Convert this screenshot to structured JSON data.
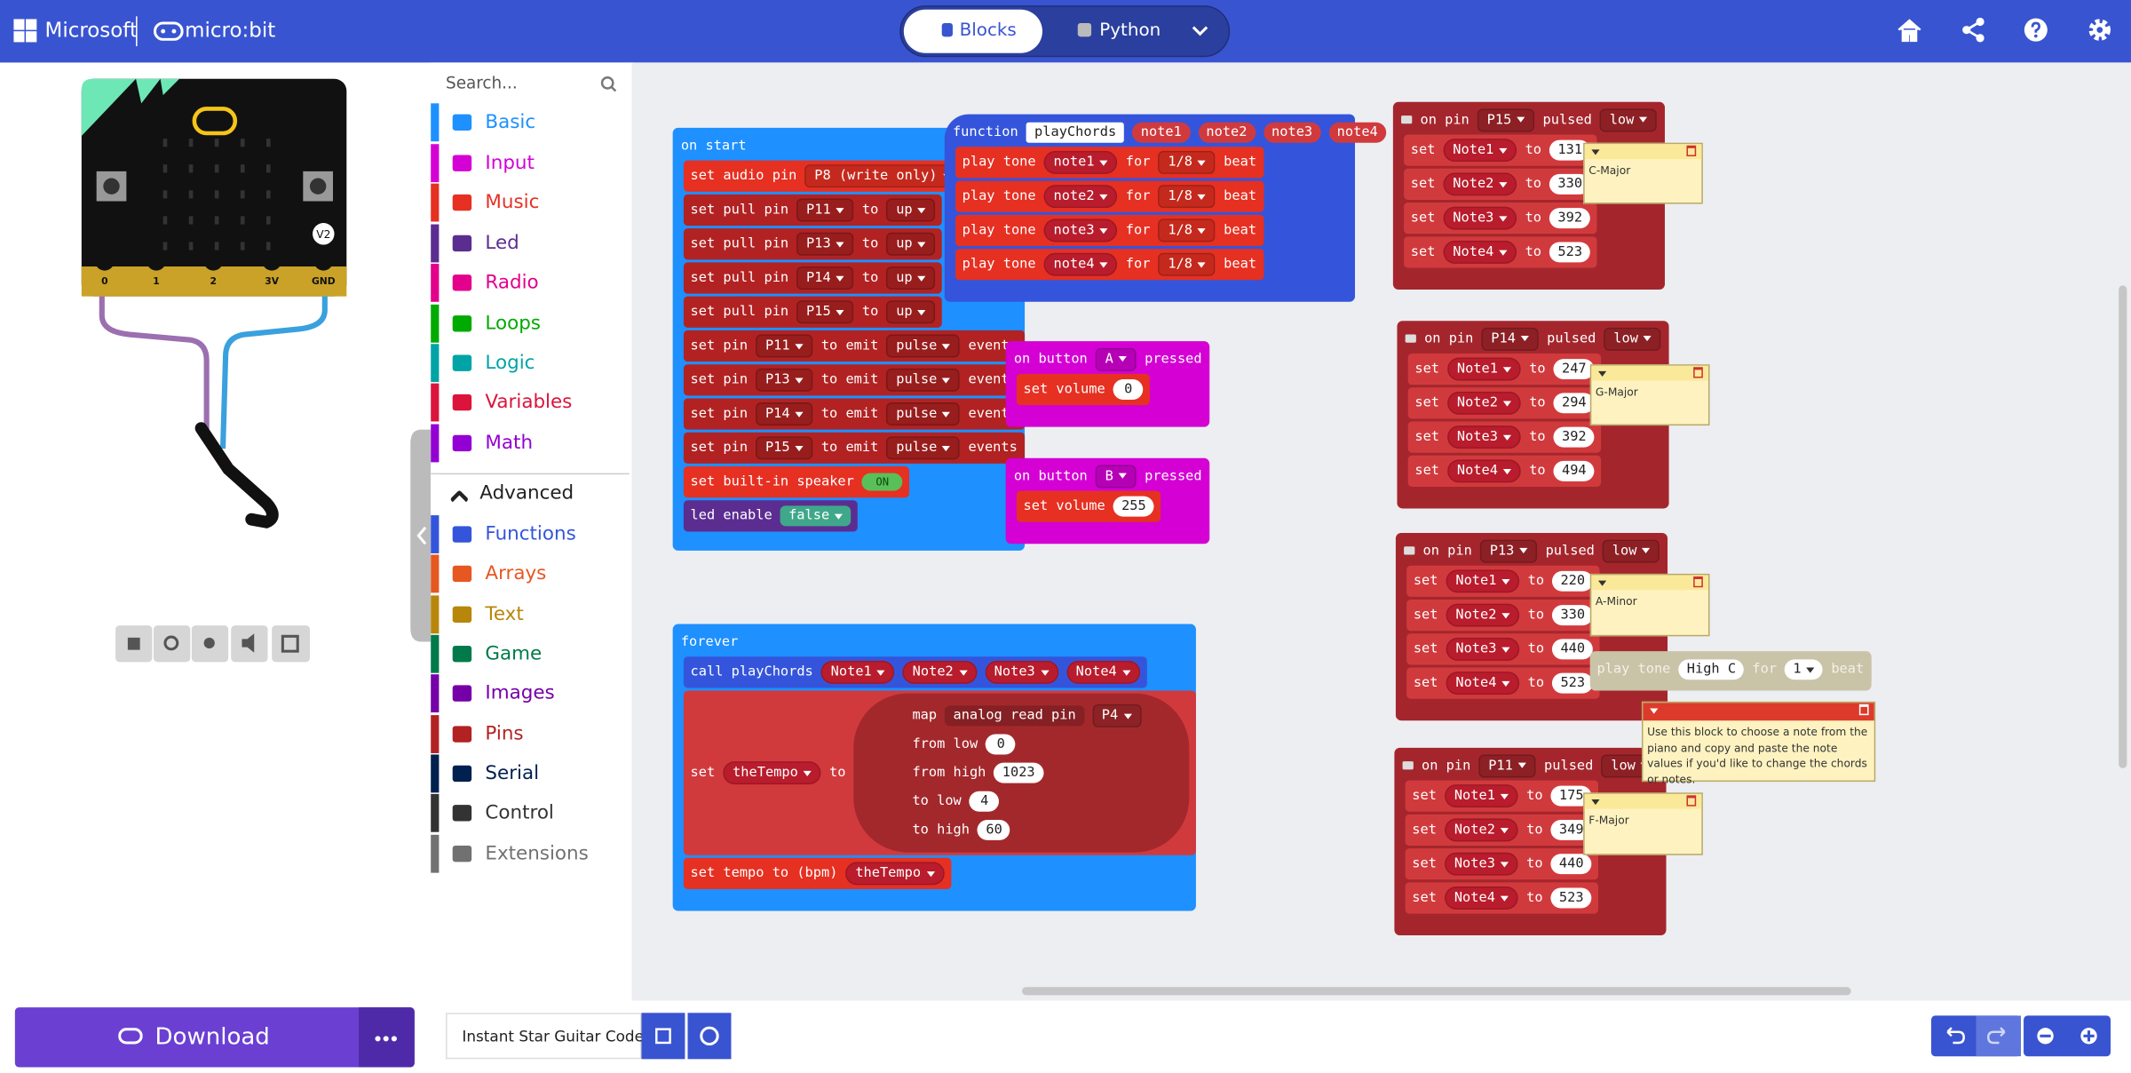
{
  "header": {
    "brand": "Microsoft",
    "product": "micro:bit",
    "tabs": [
      "Blocks",
      "Python"
    ]
  },
  "simulator": {
    "pins": [
      "0",
      "1",
      "2",
      "3V",
      "GND"
    ],
    "badge": "V2"
  },
  "toolbox": {
    "search": "Search...",
    "categories": [
      "Basic",
      "Input",
      "Music",
      "Led",
      "Radio",
      "Loops",
      "Logic",
      "Variables",
      "Math",
      "Advanced",
      "Functions",
      "Arrays",
      "Text",
      "Game",
      "Images",
      "Pins",
      "Serial",
      "Control",
      "Extensions"
    ]
  },
  "footer": {
    "download": "Download",
    "project_name": "Instant Star Guitar Code"
  },
  "workspace": {
    "blocks": [
      {
        "head": [
          "on start"
        ],
        "rows": [
          [
            "set audio pin",
            "P8 (write only)"
          ],
          [
            "set pull pin",
            "P11",
            "to",
            "up"
          ],
          [
            "set pull pin",
            "P13",
            "to",
            "up"
          ],
          [
            "set pull pin",
            "P14",
            "to",
            "up"
          ],
          [
            "set pull pin",
            "P15",
            "to",
            "up"
          ],
          [
            "set pin",
            "P11",
            "to emit",
            "pulse",
            "events"
          ],
          [
            "set pin",
            "P13",
            "to emit",
            "pulse",
            "events"
          ],
          [
            "set pin",
            "P14",
            "to emit",
            "pulse",
            "events"
          ],
          [
            "set pin",
            "P15",
            "to emit",
            "pulse",
            "events"
          ],
          [
            "set built-in speaker",
            "ON"
          ],
          [
            "led enable",
            "false"
          ]
        ]
      },
      {
        "head": [
          "function",
          "playChords",
          "note1",
          "note2",
          "note3",
          "note4"
        ],
        "rows": [
          [
            "play tone",
            "note1",
            "for",
            "1/8",
            "beat"
          ],
          [
            "play tone",
            "note2",
            "for",
            "1/8",
            "beat"
          ],
          [
            "play tone",
            "note3",
            "for",
            "1/8",
            "beat"
          ],
          [
            "play tone",
            "note4",
            "for",
            "1/8",
            "beat"
          ]
        ]
      },
      {
        "head": [
          "on button",
          "A",
          "pressed"
        ],
        "rows": [
          [
            "set volume",
            0
          ]
        ]
      },
      {
        "head": [
          "on button",
          "B",
          "pressed"
        ],
        "rows": [
          [
            "set volume",
            255
          ]
        ]
      },
      {
        "head": [
          "forever"
        ],
        "rows": [
          [
            "call playChords",
            "Note1",
            "Note2",
            "Note3",
            "Note4"
          ],
          [
            "set",
            "theTempo",
            "to"
          ],
          [
            "set tempo to (bpm)",
            "theTempo"
          ]
        ],
        "map": [
          [
            "map",
            "analog read pin",
            "P4"
          ],
          [
            "from low",
            0
          ],
          [
            "from high",
            1023
          ],
          [
            "to low",
            4
          ],
          [
            "to high",
            60
          ]
        ]
      },
      {
        "head": [
          "on pin",
          "P15",
          "pulsed",
          "low"
        ],
        "rows": [
          [
            "set",
            "Note1",
            "to",
            131
          ],
          [
            "set",
            "Note2",
            "to",
            330
          ],
          [
            "set",
            "Note3",
            "to",
            392
          ],
          [
            "set",
            "Note4",
            "to",
            523
          ]
        ]
      },
      {
        "head": [
          "on pin",
          "P14",
          "pulsed",
          "low"
        ],
        "rows": [
          [
            "set",
            "Note1",
            "to",
            247
          ],
          [
            "set",
            "Note2",
            "to",
            294
          ],
          [
            "set",
            "Note3",
            "to",
            392
          ],
          [
            "set",
            "Note4",
            "to",
            494
          ]
        ]
      },
      {
        "head": [
          "on pin",
          "P13",
          "pulsed",
          "low"
        ],
        "rows": [
          [
            "set",
            "Note1",
            "to",
            220
          ],
          [
            "set",
            "Note2",
            "to",
            330
          ],
          [
            "set",
            "Note3",
            "to",
            440
          ],
          [
            "set",
            "Note4",
            "to",
            523
          ]
        ]
      },
      {
        "head": [
          "on pin",
          "P11",
          "pulsed",
          "low"
        ],
        "rows": [
          [
            "set",
            "Note1",
            "to",
            175
          ],
          [
            "set",
            "Note2",
            "to",
            349
          ],
          [
            "set",
            "Note3",
            "to",
            440
          ],
          [
            "set",
            "Note4",
            "to",
            523
          ]
        ]
      }
    ],
    "ghost": [
      "play tone",
      "High C",
      "for",
      1,
      "beat"
    ],
    "comments": [
      "C-Major",
      "G-Major",
      "A-Minor",
      "F-Major",
      "Use this block to choose a note from the piano and copy and paste the note values if you'd like to change the chords or notes."
    ]
  }
}
